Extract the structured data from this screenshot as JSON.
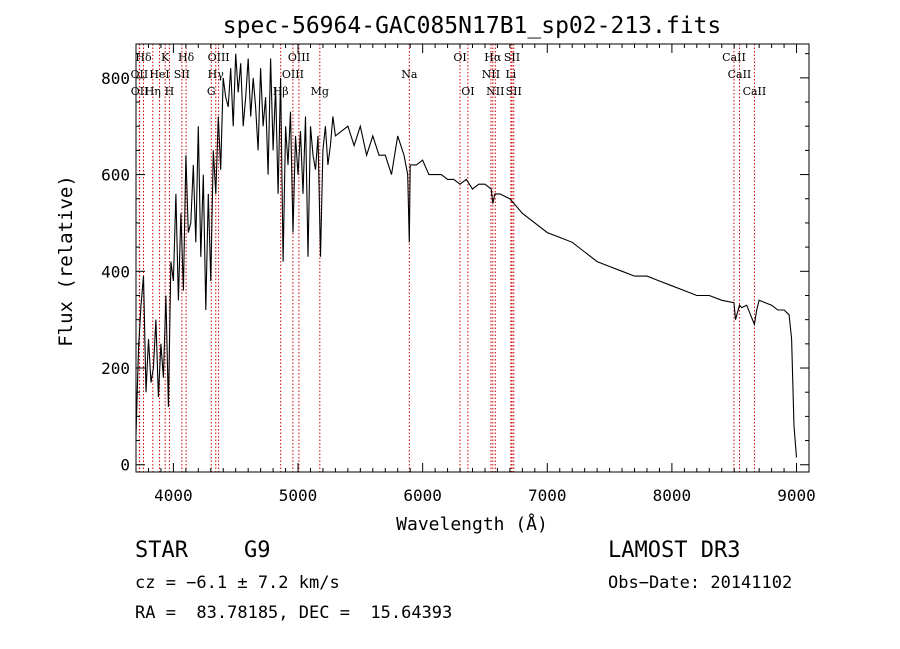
{
  "chart_data": {
    "type": "line",
    "title": "spec-56964-GAC085N17B1_sp02-213.fits",
    "xlabel": "Wavelength (Å)",
    "ylabel": "Flux (relative)",
    "xlim": [
      3700,
      9100
    ],
    "ylim": [
      -15,
      870
    ],
    "x_ticks": [
      4000,
      5000,
      6000,
      7000,
      8000,
      9000
    ],
    "y_ticks": [
      0,
      200,
      400,
      600,
      800
    ],
    "line_color": "#000000",
    "marker_color": "#cc0000",
    "series": [
      {
        "x": [
          3700,
          3720,
          3740,
          3760,
          3780,
          3800,
          3820,
          3840,
          3860,
          3880,
          3900,
          3920,
          3940,
          3960,
          3980,
          4000,
          4020,
          4040,
          4060,
          4080,
          4100,
          4120,
          4140,
          4160,
          4180,
          4200,
          4220,
          4240,
          4260,
          4280,
          4300,
          4320,
          4340,
          4360,
          4380,
          4400,
          4420,
          4440,
          4460,
          4480,
          4500,
          4520,
          4540,
          4560,
          4580,
          4600,
          4620,
          4640,
          4660,
          4680,
          4700,
          4720,
          4740,
          4760,
          4780,
          4800,
          4820,
          4840,
          4860,
          4880,
          4900,
          4920,
          4940,
          4960,
          4980,
          5000,
          5020,
          5040,
          5060,
          5080,
          5100,
          5120,
          5140,
          5160,
          5180,
          5200,
          5220,
          5240,
          5260,
          5280,
          5300,
          5350,
          5400,
          5450,
          5500,
          5550,
          5600,
          5650,
          5700,
          5750,
          5800,
          5850,
          5880,
          5893,
          5900,
          5950,
          6000,
          6050,
          6100,
          6150,
          6200,
          6250,
          6300,
          6350,
          6400,
          6450,
          6500,
          6550,
          6563,
          6580,
          6620,
          6700,
          6800,
          6900,
          7000,
          7100,
          7200,
          7300,
          7400,
          7500,
          7600,
          7700,
          7800,
          7900,
          8000,
          8100,
          8200,
          8300,
          8400,
          8498,
          8510,
          8542,
          8560,
          8600,
          8662,
          8680,
          8700,
          8800,
          8850,
          8900,
          8940,
          8960,
          8980,
          9000
        ],
        "y": [
          60,
          240,
          330,
          390,
          150,
          260,
          170,
          200,
          300,
          140,
          250,
          180,
          350,
          120,
          420,
          380,
          560,
          340,
          520,
          360,
          640,
          480,
          500,
          620,
          460,
          700,
          430,
          600,
          320,
          560,
          380,
          650,
          560,
          720,
          610,
          800,
          760,
          740,
          820,
          700,
          850,
          770,
          830,
          700,
          760,
          840,
          720,
          800,
          740,
          650,
          820,
          700,
          760,
          600,
          840,
          650,
          780,
          560,
          800,
          420,
          700,
          620,
          730,
          480,
          680,
          600,
          690,
          560,
          720,
          430,
          700,
          640,
          610,
          680,
          430,
          650,
          700,
          620,
          660,
          720,
          680,
          690,
          700,
          660,
          700,
          640,
          680,
          640,
          640,
          600,
          680,
          640,
          600,
          460,
          620,
          620,
          630,
          600,
          600,
          600,
          590,
          590,
          580,
          590,
          570,
          580,
          580,
          570,
          540,
          560,
          560,
          550,
          520,
          500,
          480,
          470,
          460,
          440,
          420,
          410,
          400,
          390,
          390,
          380,
          370,
          360,
          350,
          350,
          340,
          335,
          300,
          330,
          325,
          330,
          290,
          320,
          340,
          330,
          320,
          320,
          310,
          260,
          80,
          15
        ]
      }
    ],
    "line_marks": [
      {
        "label": "Hδ",
        "x": 3760,
        "row": 0
      },
      {
        "label": "K",
        "x": 3934,
        "row": 0
      },
      {
        "label": "Hδ",
        "x": 4102,
        "row": 0
      },
      {
        "label": "OIII",
        "x": 4363,
        "row": 0
      },
      {
        "label": "OIII",
        "x": 5007,
        "row": 0
      },
      {
        "label": "OI",
        "x": 6300,
        "row": 0
      },
      {
        "label": "Hα",
        "x": 6563,
        "row": 0
      },
      {
        "label": "SII",
        "x": 6717,
        "row": 0
      },
      {
        "label": "CaII",
        "x": 8498,
        "row": 0
      },
      {
        "label": "OII",
        "x": 3727,
        "row": 1
      },
      {
        "label": "HeI",
        "x": 3889,
        "row": 1
      },
      {
        "label": "SII",
        "x": 4068,
        "row": 1
      },
      {
        "label": "Hγ",
        "x": 4340,
        "row": 1
      },
      {
        "label": "OIII",
        "x": 4959,
        "row": 1
      },
      {
        "label": "Na",
        "x": 5893,
        "row": 1
      },
      {
        "label": "NII",
        "x": 6548,
        "row": 1
      },
      {
        "label": "Li",
        "x": 6708,
        "row": 1
      },
      {
        "label": "CaII",
        "x": 8542,
        "row": 1
      },
      {
        "label": "OII",
        "x": 3729,
        "row": 2
      },
      {
        "label": "Hη",
        "x": 3835,
        "row": 2
      },
      {
        "label": "H",
        "x": 3968,
        "row": 2
      },
      {
        "label": "G",
        "x": 4304,
        "row": 2
      },
      {
        "label": "Hβ",
        "x": 4861,
        "row": 2
      },
      {
        "label": "Mg",
        "x": 5175,
        "row": 2
      },
      {
        "label": "OI",
        "x": 6363,
        "row": 2
      },
      {
        "label": "NII",
        "x": 6583,
        "row": 2
      },
      {
        "label": "SII",
        "x": 6731,
        "row": 2
      },
      {
        "label": "CaII",
        "x": 8662,
        "row": 2
      }
    ]
  },
  "info": {
    "object_class": "STAR",
    "subclass": "G9",
    "survey": "LAMOST DR3",
    "cz": "cz = −6.1 ± 7.2 km/s",
    "obs_date": "Obs−Date: 20141102",
    "coords": "RA =  83.78185, DEC =  15.64393"
  }
}
